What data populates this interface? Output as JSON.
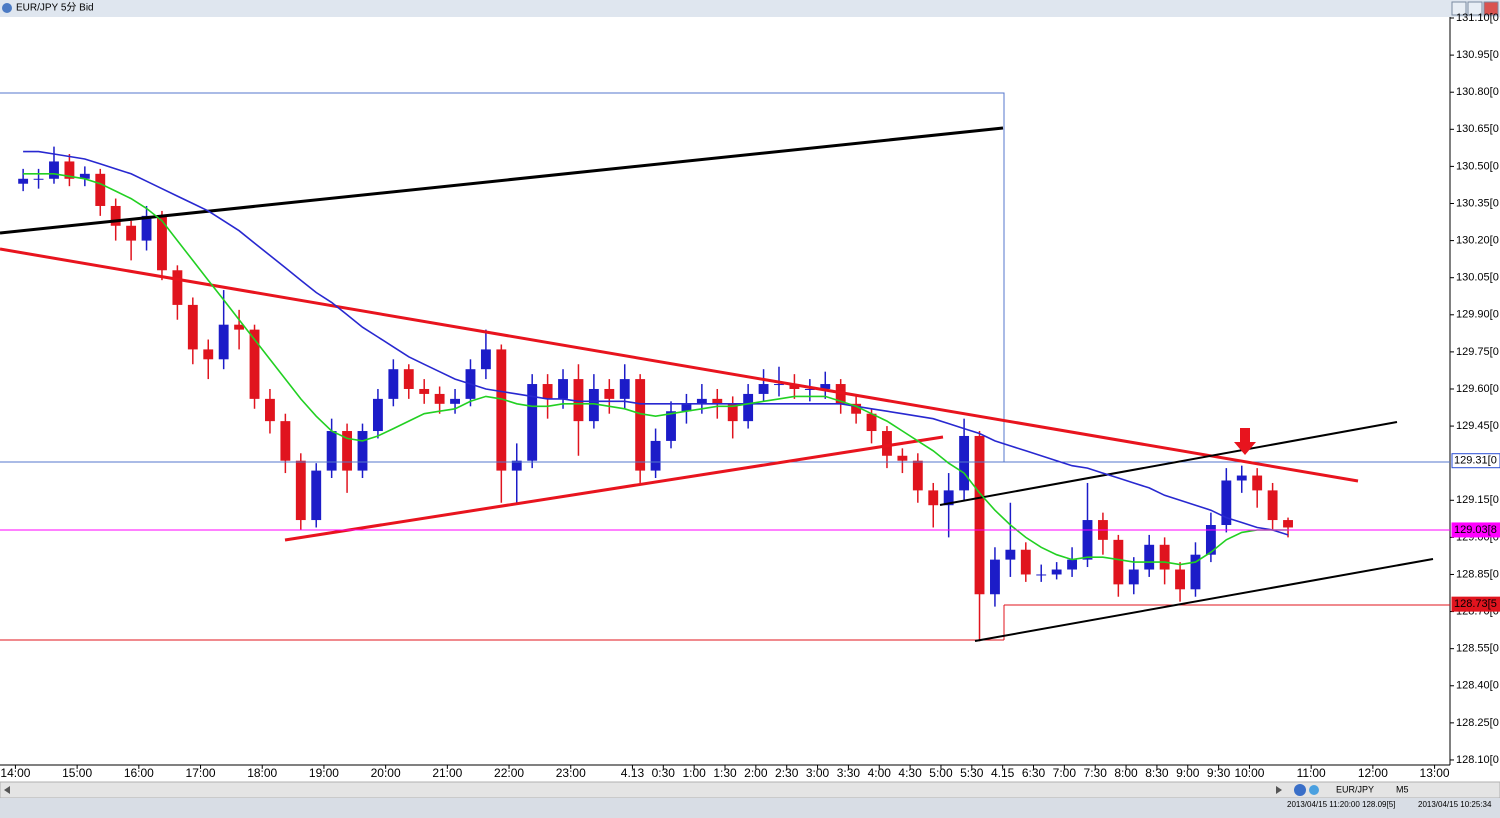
{
  "window": {
    "title": "EUR/JPY 5分 Bid"
  },
  "status_bar": {
    "symbol": "EUR/JPY",
    "timeframe": "M5",
    "bar_info": "2013/04/15 11:20:00 128.09[5]",
    "clock": "2013/04/15 10:25:34"
  },
  "chart_data": {
    "type": "candlestick",
    "up_color": "#1c1cc8",
    "down_color": "#e0141e",
    "open": [
      130.43,
      130.45,
      130.45,
      130.52,
      130.45,
      130.47,
      130.34,
      130.26,
      130.2,
      130.3,
      130.08,
      129.94,
      129.76,
      129.72,
      129.86,
      129.84,
      129.56,
      129.47,
      129.31,
      129.07,
      129.27,
      129.43,
      129.27,
      129.43,
      129.56,
      129.68,
      129.6,
      129.58,
      129.54,
      129.56,
      129.68,
      129.76,
      129.27,
      129.31,
      129.62,
      129.56,
      129.64,
      129.47,
      129.6,
      129.56,
      129.64,
      129.27,
      129.39,
      129.51,
      129.54,
      129.56,
      129.54,
      129.47,
      129.58,
      129.62,
      129.62,
      129.6,
      129.6,
      129.62,
      129.54,
      129.5,
      129.43,
      129.33,
      129.31,
      129.19,
      129.13,
      129.19,
      129.41,
      128.77,
      128.91,
      128.95,
      128.85,
      128.85,
      128.87,
      128.91,
      129.07,
      128.99,
      128.81,
      128.87,
      128.97,
      128.87,
      128.79,
      128.93,
      129.05,
      129.23,
      129.25,
      129.19,
      129.07
    ],
    "high": [
      130.49,
      130.49,
      130.58,
      130.55,
      130.5,
      130.49,
      130.37,
      130.28,
      130.34,
      130.32,
      130.1,
      129.97,
      129.8,
      130.0,
      129.92,
      129.86,
      129.6,
      129.5,
      129.34,
      129.3,
      129.48,
      129.46,
      129.46,
      129.6,
      129.72,
      129.7,
      129.64,
      129.61,
      129.6,
      129.72,
      129.84,
      129.78,
      129.38,
      129.66,
      129.66,
      129.68,
      129.7,
      129.66,
      129.64,
      129.7,
      129.66,
      129.44,
      129.55,
      129.58,
      129.62,
      129.6,
      129.57,
      129.62,
      129.68,
      129.69,
      129.66,
      129.64,
      129.67,
      129.64,
      129.57,
      129.52,
      129.45,
      129.36,
      129.34,
      129.22,
      129.26,
      129.48,
      129.43,
      128.96,
      129.14,
      128.98,
      128.89,
      128.9,
      128.96,
      129.22,
      129.1,
      129.01,
      128.92,
      129.01,
      129.0,
      128.9,
      128.98,
      129.1,
      129.28,
      129.29,
      129.28,
      129.22,
      129.08
    ],
    "low": [
      130.4,
      130.41,
      130.43,
      130.42,
      130.42,
      130.3,
      130.2,
      130.12,
      130.16,
      130.04,
      129.88,
      129.7,
      129.64,
      129.68,
      129.76,
      129.52,
      129.42,
      129.26,
      129.03,
      129.04,
      129.24,
      129.18,
      129.24,
      129.4,
      129.53,
      129.56,
      129.54,
      129.5,
      129.5,
      129.53,
      129.64,
      129.14,
      129.14,
      129.28,
      129.48,
      129.52,
      129.33,
      129.44,
      129.5,
      129.52,
      129.22,
      129.24,
      129.36,
      129.46,
      129.5,
      129.48,
      129.4,
      129.44,
      129.55,
      129.57,
      129.56,
      129.55,
      129.56,
      129.5,
      129.46,
      129.38,
      129.28,
      129.26,
      129.14,
      129.04,
      129.0,
      129.15,
      128.58,
      128.72,
      128.84,
      128.82,
      128.82,
      128.83,
      128.84,
      128.88,
      128.93,
      128.76,
      128.77,
      128.84,
      128.81,
      128.74,
      128.76,
      128.9,
      129.02,
      129.18,
      129.12,
      129.03,
      129.0
    ],
    "close": [
      130.45,
      130.45,
      130.52,
      130.45,
      130.47,
      130.34,
      130.26,
      130.2,
      130.3,
      130.08,
      129.94,
      129.76,
      129.72,
      129.86,
      129.84,
      129.56,
      129.47,
      129.31,
      129.07,
      129.27,
      129.43,
      129.27,
      129.43,
      129.56,
      129.68,
      129.6,
      129.58,
      129.54,
      129.56,
      129.68,
      129.76,
      129.27,
      129.31,
      129.62,
      129.56,
      129.64,
      129.47,
      129.6,
      129.56,
      129.64,
      129.27,
      129.39,
      129.51,
      129.54,
      129.56,
      129.54,
      129.47,
      129.58,
      129.62,
      129.62,
      129.6,
      129.6,
      129.62,
      129.54,
      129.5,
      129.43,
      129.33,
      129.31,
      129.19,
      129.13,
      129.19,
      129.41,
      128.77,
      128.91,
      128.95,
      128.85,
      128.85,
      128.87,
      128.91,
      129.07,
      128.99,
      128.81,
      128.87,
      128.97,
      128.87,
      128.79,
      128.93,
      129.05,
      129.23,
      129.25,
      129.19,
      129.07,
      129.04
    ],
    "overlays": [
      {
        "color": "#2828d0",
        "values": [
          130.56,
          130.56,
          130.55,
          130.54,
          130.53,
          130.51,
          130.49,
          130.47,
          130.44,
          130.41,
          130.38,
          130.35,
          130.32,
          130.28,
          130.24,
          130.19,
          130.14,
          130.09,
          130.04,
          129.99,
          129.95,
          129.9,
          129.85,
          129.81,
          129.77,
          129.73,
          129.7,
          129.67,
          129.64,
          129.62,
          129.6,
          129.59,
          129.58,
          129.57,
          129.56,
          129.56,
          129.55,
          129.55,
          129.55,
          129.55,
          129.54,
          129.54,
          129.54,
          129.54,
          129.54,
          129.54,
          129.54,
          129.54,
          129.54,
          129.54,
          129.54,
          129.54,
          129.54,
          129.54,
          129.53,
          129.52,
          129.51,
          129.5,
          129.49,
          129.48,
          129.46,
          129.44,
          129.42,
          129.39,
          129.37,
          129.35,
          129.33,
          129.31,
          129.29,
          129.28,
          129.26,
          129.24,
          129.22,
          129.2,
          129.17,
          129.15,
          129.13,
          129.11,
          129.08,
          129.06,
          129.04,
          129.03,
          129.01
        ]
      },
      {
        "color": "#22d022",
        "values": [
          130.47,
          130.47,
          130.47,
          130.46,
          130.45,
          130.43,
          130.4,
          130.37,
          130.33,
          130.28,
          130.2,
          130.12,
          130.04,
          129.96,
          129.88,
          129.8,
          129.72,
          129.64,
          129.56,
          129.49,
          129.43,
          129.4,
          129.39,
          129.41,
          129.44,
          129.47,
          129.5,
          129.51,
          129.52,
          129.55,
          129.57,
          129.56,
          129.54,
          129.53,
          129.53,
          129.54,
          129.54,
          129.54,
          129.53,
          129.52,
          129.5,
          129.49,
          129.5,
          129.51,
          129.52,
          129.53,
          129.53,
          129.54,
          129.55,
          129.56,
          129.57,
          129.57,
          129.57,
          129.55,
          129.53,
          129.5,
          129.47,
          129.43,
          129.39,
          129.35,
          129.3,
          129.26,
          129.18,
          129.11,
          129.05,
          129.0,
          128.96,
          128.93,
          128.91,
          128.92,
          128.92,
          128.91,
          128.9,
          128.9,
          128.9,
          128.89,
          128.9,
          128.94,
          128.99,
          129.02,
          129.03,
          129.03,
          129.03
        ]
      }
    ],
    "levels": [
      {
        "value": 129.31,
        "label": "129.31[0",
        "color": "#2a4fd6",
        "fill": "#ffffff",
        "full_line": false
      },
      {
        "value": 129.03,
        "label": "129.03[8",
        "color": "#ff00ff",
        "fill": "#ff00ff",
        "full_line": true
      },
      {
        "value": 128.73,
        "label": "128.73[5",
        "color": "#e0141e",
        "fill": "#e0141e",
        "full_line": false
      }
    ],
    "xlim": [
      -1,
      93
    ],
    "xticks": [
      {
        "value": 0,
        "label": "14:00"
      },
      {
        "value": 4,
        "label": "15:00"
      },
      {
        "value": 8,
        "label": "16:00"
      },
      {
        "value": 12,
        "label": "17:00"
      },
      {
        "value": 16,
        "label": "18:00"
      },
      {
        "value": 20,
        "label": "19:00"
      },
      {
        "value": 24,
        "label": "20:00"
      },
      {
        "value": 28,
        "label": "21:00"
      },
      {
        "value": 32,
        "label": "22:00"
      },
      {
        "value": 36,
        "label": "23:00"
      },
      {
        "value": 40,
        "label": "4.13"
      },
      {
        "value": 42,
        "label": "0:30"
      },
      {
        "value": 44,
        "label": "1:00"
      },
      {
        "value": 46,
        "label": "1:30"
      },
      {
        "value": 48,
        "label": "2:00"
      },
      {
        "value": 50,
        "label": "2:30"
      },
      {
        "value": 52,
        "label": "3:00"
      },
      {
        "value": 54,
        "label": "3:30"
      },
      {
        "value": 56,
        "label": "4:00"
      },
      {
        "value": 58,
        "label": "4:30"
      },
      {
        "value": 60,
        "label": "5:00"
      },
      {
        "value": 62,
        "label": "5:30"
      },
      {
        "value": 64,
        "label": "4.15"
      },
      {
        "value": 66,
        "label": "6:30"
      },
      {
        "value": 68,
        "label": "7:00"
      },
      {
        "value": 70,
        "label": "7:30"
      },
      {
        "value": 72,
        "label": "8:00"
      },
      {
        "value": 74,
        "label": "8:30"
      },
      {
        "value": 76,
        "label": "9:00"
      },
      {
        "value": 78,
        "label": "9:30"
      },
      {
        "value": 80,
        "label": "10:00"
      },
      {
        "value": 84,
        "label": "11:00"
      },
      {
        "value": 88,
        "label": "12:00"
      },
      {
        "value": 92,
        "label": "13:00"
      }
    ],
    "ylim": [
      128.08,
      131.17
    ],
    "yticks": [
      {
        "value": 131.1,
        "label": "131.10[0"
      },
      {
        "value": 130.95,
        "label": "130.95[0"
      },
      {
        "value": 130.8,
        "label": "130.80[0"
      },
      {
        "value": 130.65,
        "label": "130.65[0"
      },
      {
        "value": 130.5,
        "label": "130.50[0"
      },
      {
        "value": 130.35,
        "label": "130.35[0"
      },
      {
        "value": 130.2,
        "label": "130.20[0"
      },
      {
        "value": 130.05,
        "label": "130.05[0"
      },
      {
        "value": 129.9,
        "label": "129.90[0"
      },
      {
        "value": 129.75,
        "label": "129.75[0"
      },
      {
        "value": 129.6,
        "label": "129.60[0"
      },
      {
        "value": 129.45,
        "label": "129.45[0"
      },
      {
        "value": 129.15,
        "label": "129.15[0"
      },
      {
        "value": 129.0,
        "label": "129.00[0"
      },
      {
        "value": 128.85,
        "label": "128.85[0"
      },
      {
        "value": 128.7,
        "label": "128.70[0"
      },
      {
        "value": 128.55,
        "label": "128.55[0"
      },
      {
        "value": 128.4,
        "label": "128.40[0"
      },
      {
        "value": 128.25,
        "label": "128.25[0"
      },
      {
        "value": 128.1,
        "label": "128.10[0"
      }
    ]
  }
}
